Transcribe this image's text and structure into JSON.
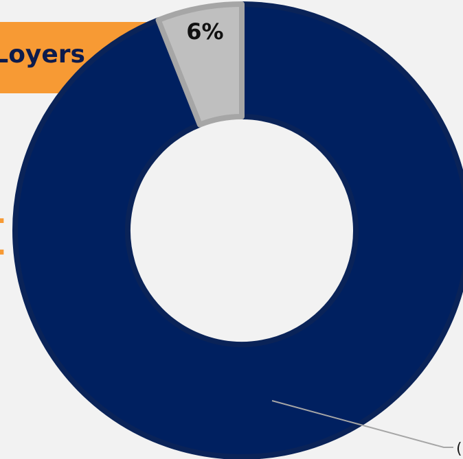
{
  "colors": {
    "background": "#f2f2f2",
    "accent_orange": "#f79a34",
    "navy": "#002060",
    "gray": "#bfbfbf"
  },
  "banner": {
    "text": "Loyers"
  },
  "side_text": {
    "text": "t"
  },
  "chart_data": {
    "type": "pie",
    "subtype": "donut",
    "slices": [
      {
        "label": "",
        "value": 94,
        "color": "#002060"
      },
      {
        "label": "6%",
        "value": 6,
        "color": "#bfbfbf"
      }
    ],
    "callout_text": "("
  }
}
